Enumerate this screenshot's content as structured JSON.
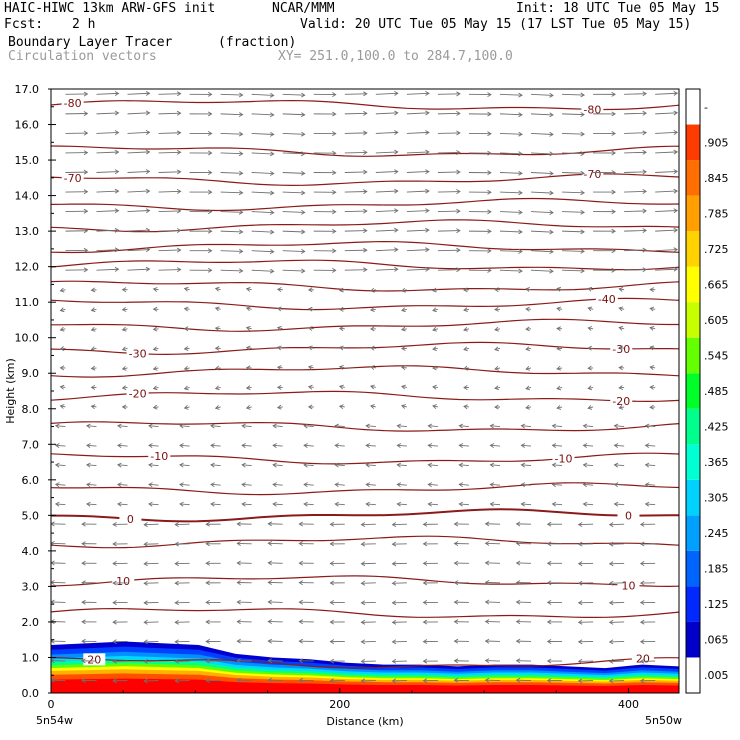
{
  "header": {
    "model": "HAIC-HIWC 13km ARW-GFS init",
    "org": "NCAR/MMM",
    "init": "Init: 18 UTC Tue 05 May 15",
    "fcst_label": "Fcst:",
    "fcst_value": "2 h",
    "valid": "Valid: 20 UTC Tue 05 May 15 (17 LST Tue 05 May 15)",
    "field1": "Boundary Layer Tracer",
    "field1_unit": "(fraction)",
    "field2": "Circulation vectors",
    "xy": "XY= 251.0,100.0 to 284.7,100.0"
  },
  "chart_data": {
    "type": "cross-section",
    "xlabel": "Distance (km)",
    "ylabel": "Height (km)",
    "xlim": [
      0,
      435
    ],
    "ylim": [
      0,
      17
    ],
    "x_ticks": [
      "0",
      "200",
      "400"
    ],
    "x_tick_values": [
      0,
      200,
      400
    ],
    "x_end_labels": [
      "5n54w",
      "5n50w"
    ],
    "y_ticks": [
      "0.0",
      "1.0",
      "2.0",
      "3.0",
      "4.0",
      "5.0",
      "6.0",
      "7.0",
      "8.0",
      "9.0",
      "10.0",
      "11.0",
      "12.0",
      "13.0",
      "14.0",
      "15.0",
      "16.0",
      "17.0"
    ],
    "isotherms": [
      {
        "label": "-80",
        "h": 16.55,
        "labels_at": [
          15,
          375
        ]
      },
      {
        "label": "",
        "h": 15.25,
        "labels_at": []
      },
      {
        "label": "-70",
        "h": 14.45,
        "labels_at": [
          15,
          375
        ]
      },
      {
        "label": "",
        "h": 13.75,
        "labels_at": []
      },
      {
        "label": "",
        "h": 13.15,
        "labels_at": []
      },
      {
        "label": "",
        "h": 12.55,
        "labels_at": []
      },
      {
        "label": "",
        "h": 12.05,
        "labels_at": []
      },
      {
        "label": "",
        "h": 11.45,
        "labels_at": []
      },
      {
        "label": "-40",
        "h": 10.95,
        "labels_at": [
          385
        ]
      },
      {
        "label": "",
        "h": 10.35,
        "labels_at": []
      },
      {
        "label": "-30",
        "h": 9.7,
        "labels_at": [
          60,
          395
        ]
      },
      {
        "label": "",
        "h": 9.05,
        "labels_at": []
      },
      {
        "label": "-20",
        "h": 8.35,
        "labels_at": [
          60,
          395
        ]
      },
      {
        "label": "",
        "h": 7.5,
        "labels_at": []
      },
      {
        "label": "-10",
        "h": 6.6,
        "labels_at": [
          75,
          355
        ]
      },
      {
        "label": "",
        "h": 5.75,
        "labels_at": []
      },
      {
        "label": "0",
        "h": 5.0,
        "labels_at": [
          55,
          400
        ]
      },
      {
        "label": "",
        "h": 4.25,
        "labels_at": []
      },
      {
        "label": "10",
        "h": 3.15,
        "labels_at": [
          50,
          400
        ]
      },
      {
        "label": "",
        "h": 2.25,
        "labels_at": []
      },
      {
        "label": "20",
        "h": 0.85,
        "labels_at": [
          30,
          410
        ]
      }
    ],
    "colorbar": {
      "labels": [
        ".005",
        ".065",
        ".125",
        ".185",
        ".245",
        ".305",
        ".365",
        ".425",
        ".485",
        ".545",
        ".605",
        ".665",
        ".725",
        ".785",
        ".845",
        ".905",
        "-"
      ],
      "colors": [
        "#ffffff",
        "#0000c8",
        "#0028ff",
        "#0064ff",
        "#00a0ff",
        "#00d2ff",
        "#00ffd2",
        "#00ff8c",
        "#00ff28",
        "#64ff00",
        "#c8ff00",
        "#ffff00",
        "#ffd200",
        "#ffa000",
        "#ff6e00",
        "#ff3c00",
        "#ff0000",
        "#ff0000"
      ]
    },
    "vector_color": "#707070",
    "contour_color": "#8b1a1a",
    "bl_top_km": [
      1.35,
      1.4,
      1.45,
      1.4,
      1.35,
      1.1,
      1.0,
      0.95,
      0.85,
      0.8,
      0.8,
      0.75,
      0.8,
      0.8,
      0.75,
      0.7,
      0.8,
      0.75
    ]
  }
}
